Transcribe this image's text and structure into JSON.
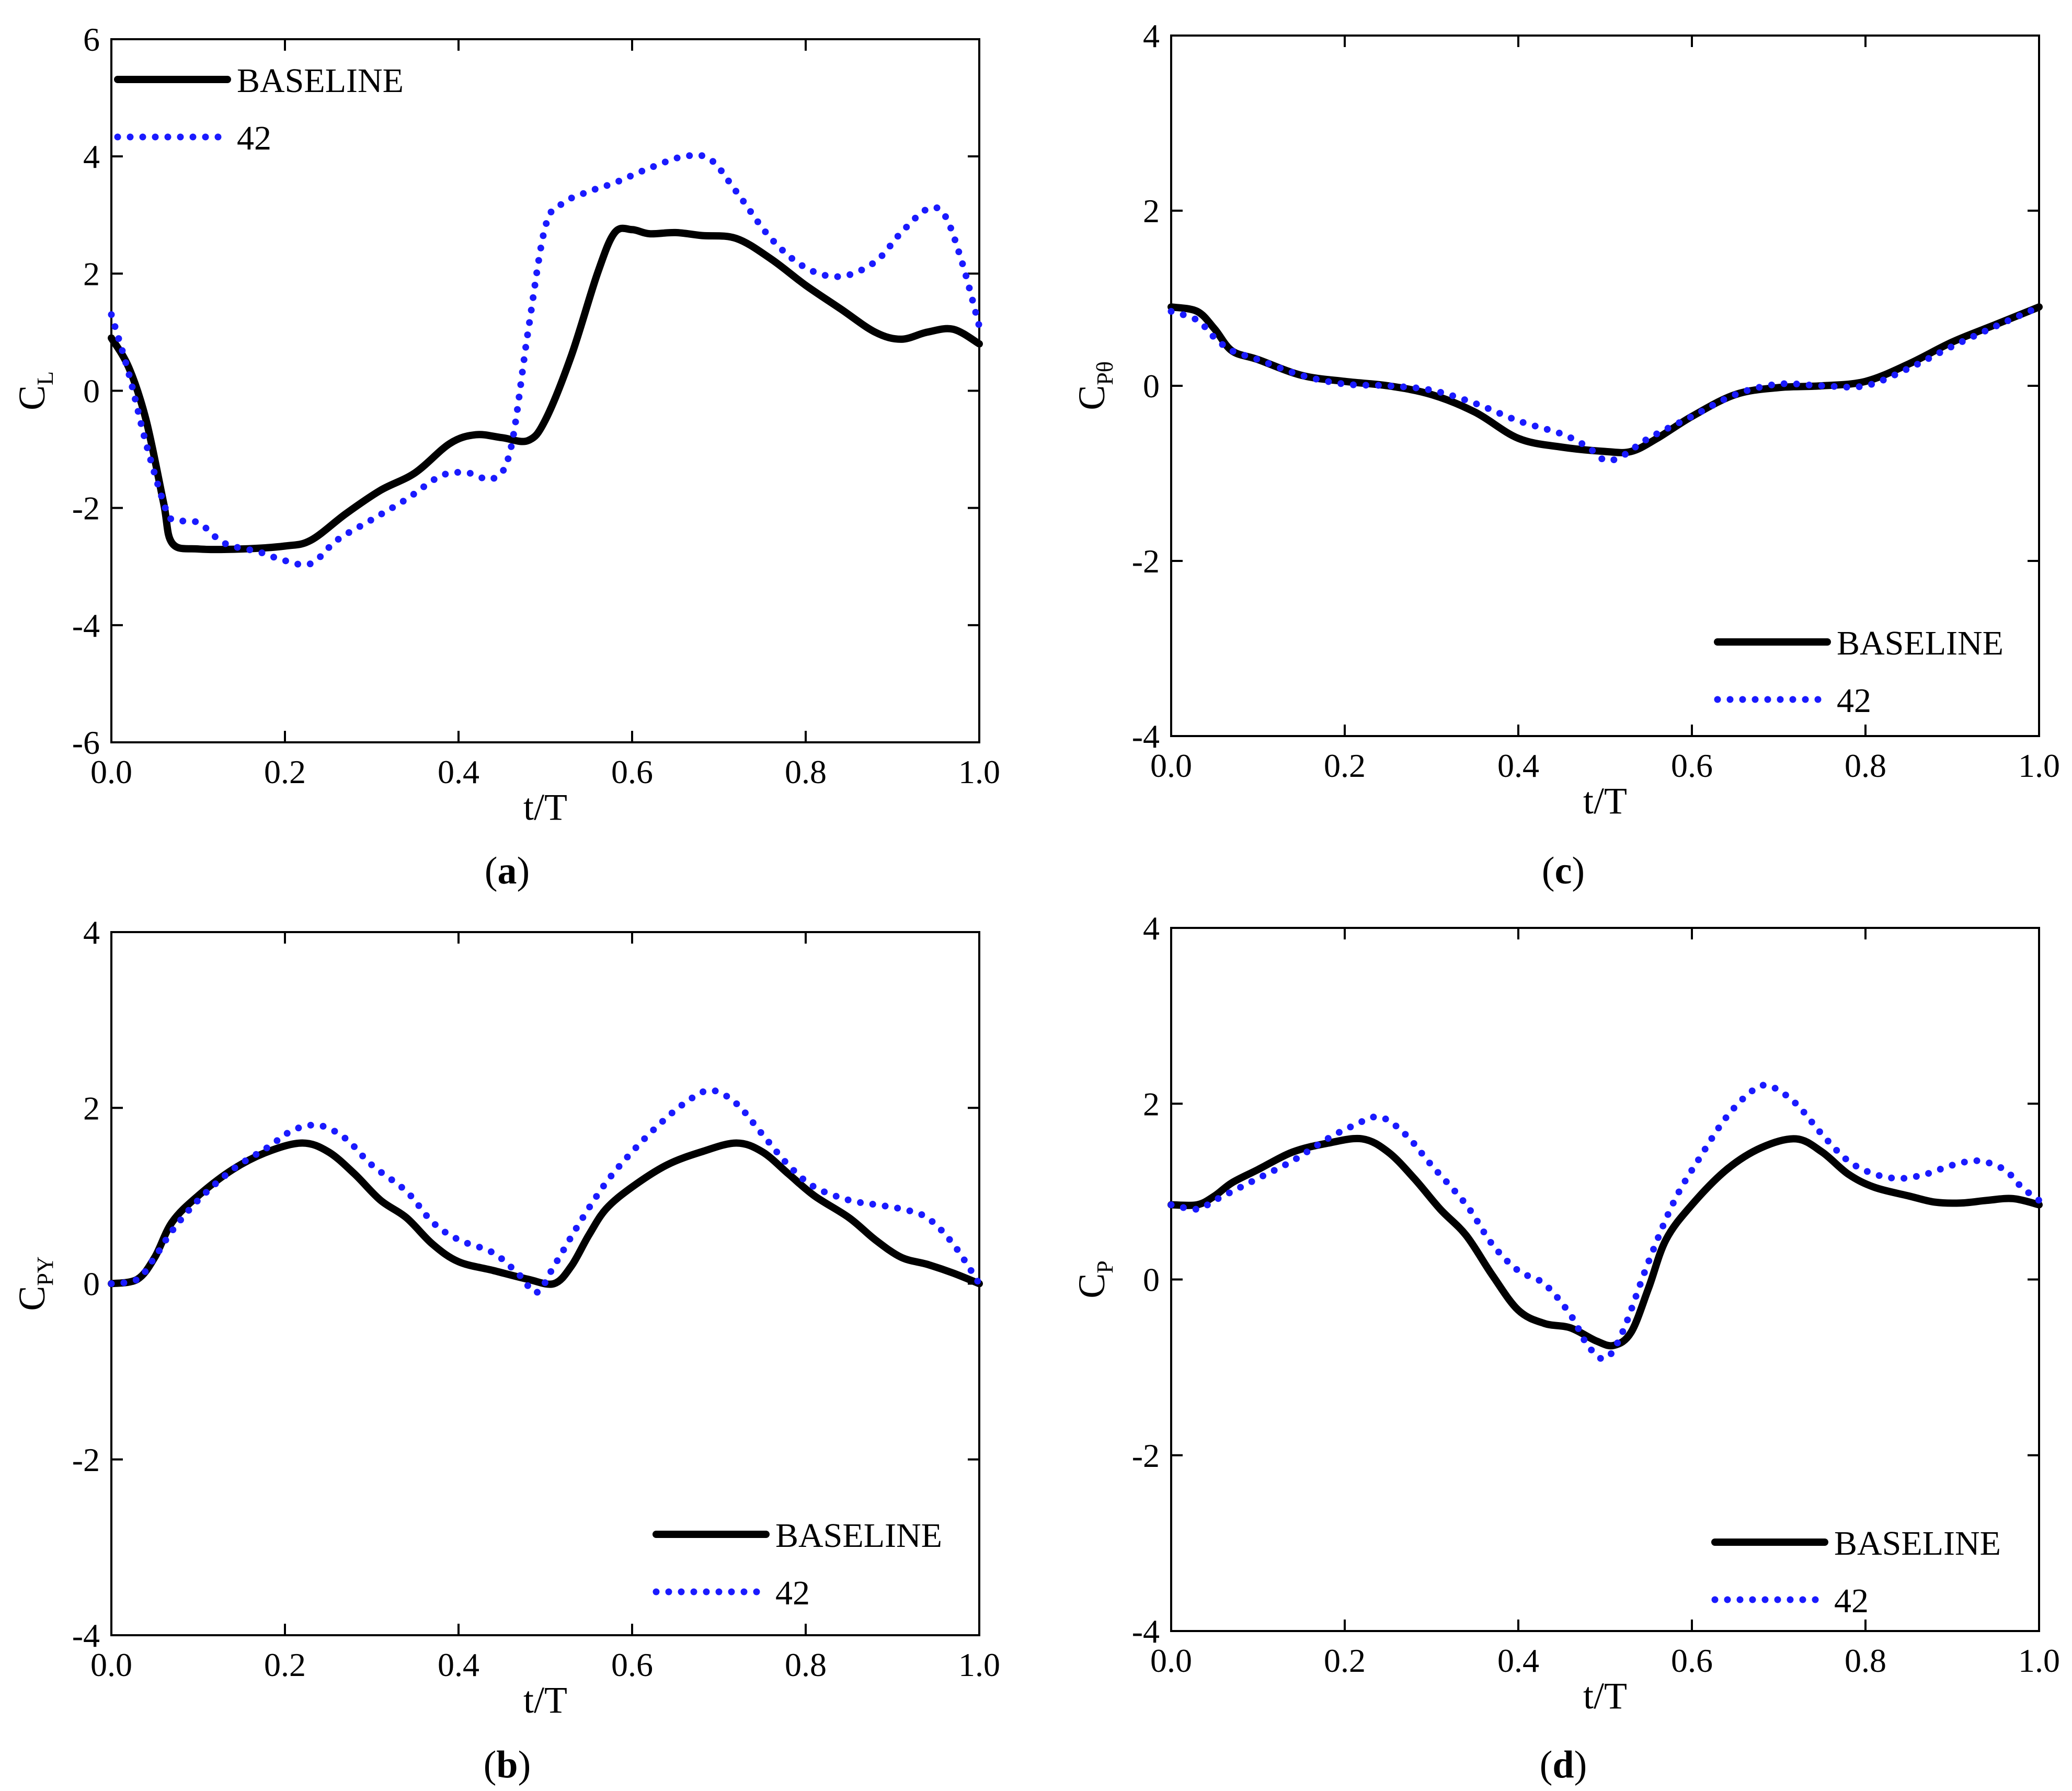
{
  "legend": {
    "baseline": "BASELINE",
    "case": "42"
  },
  "colors": {
    "baseline": "#000000",
    "case": "#1a1aff"
  },
  "chart_data": [
    {
      "id": "a",
      "type": "line",
      "caption": "a",
      "xlabel": "t/T",
      "ylabel": {
        "main": "C",
        "sub": "L"
      },
      "xlim": [
        0,
        1
      ],
      "ylim": [
        -6,
        6
      ],
      "xticks": [
        0,
        0.2,
        0.4,
        0.6,
        0.8,
        1
      ],
      "xtick_labels": [
        "0.0",
        "0.2",
        "0.4",
        "0.6",
        "0.8",
        "1.0"
      ],
      "yticks": [
        -6,
        -4,
        -2,
        0,
        2,
        4,
        6
      ],
      "ytick_labels": [
        "-6",
        "-4",
        "-2",
        "0",
        "2",
        "4",
        "6"
      ],
      "legend_position": "top-left",
      "series": [
        {
          "name": "BASELINE",
          "style": "solid",
          "x": [
            0,
            0.02,
            0.04,
            0.06,
            0.07,
            0.1,
            0.15,
            0.2,
            0.23,
            0.27,
            0.31,
            0.35,
            0.39,
            0.42,
            0.45,
            0.48,
            0.5,
            0.53,
            0.56,
            0.58,
            0.6,
            0.62,
            0.65,
            0.68,
            0.72,
            0.76,
            0.8,
            0.84,
            0.88,
            0.91,
            0.94,
            0.97,
            1.0
          ],
          "y": [
            0.9,
            0.4,
            -0.5,
            -1.9,
            -2.6,
            -2.7,
            -2.7,
            -2.65,
            -2.55,
            -2.1,
            -1.7,
            -1.4,
            -0.9,
            -0.75,
            -0.8,
            -0.85,
            -0.5,
            0.6,
            2.0,
            2.7,
            2.75,
            2.68,
            2.7,
            2.65,
            2.6,
            2.25,
            1.8,
            1.4,
            1.0,
            0.88,
            1.0,
            1.05,
            0.8
          ]
        },
        {
          "name": "42",
          "style": "dotted",
          "x": [
            0,
            0.02,
            0.04,
            0.06,
            0.07,
            0.1,
            0.13,
            0.17,
            0.2,
            0.23,
            0.26,
            0.3,
            0.34,
            0.38,
            0.41,
            0.44,
            0.46,
            0.48,
            0.5,
            0.52,
            0.55,
            0.58,
            0.62,
            0.66,
            0.69,
            0.72,
            0.76,
            0.8,
            0.84,
            0.88,
            0.91,
            0.94,
            0.96,
            0.98,
            1.0
          ],
          "y": [
            1.3,
            0.3,
            -0.9,
            -1.9,
            -2.2,
            -2.25,
            -2.6,
            -2.75,
            -2.9,
            -2.95,
            -2.55,
            -2.2,
            -1.85,
            -1.45,
            -1.4,
            -1.5,
            -1.0,
            1.0,
            2.8,
            3.2,
            3.4,
            3.55,
            3.8,
            4.0,
            3.95,
            3.4,
            2.6,
            2.1,
            1.95,
            2.2,
            2.7,
            3.1,
            3.0,
            2.2,
            1.1
          ]
        }
      ]
    },
    {
      "id": "b",
      "type": "line",
      "caption": "b",
      "xlabel": "t/T",
      "ylabel": {
        "main": "C",
        "sub": "PY"
      },
      "xlim": [
        0,
        1
      ],
      "ylim": [
        -4,
        4
      ],
      "xticks": [
        0,
        0.2,
        0.4,
        0.6,
        0.8,
        1
      ],
      "xtick_labels": [
        "0.0",
        "0.2",
        "0.4",
        "0.6",
        "0.8",
        "1.0"
      ],
      "yticks": [
        -4,
        -2,
        0,
        2,
        4
      ],
      "ytick_labels": [
        "-4",
        "-2",
        "0",
        "2",
        "4"
      ],
      "legend_position": "bottom-right",
      "series": [
        {
          "name": "BASELINE",
          "style": "solid",
          "x": [
            0,
            0.03,
            0.05,
            0.07,
            0.1,
            0.14,
            0.18,
            0.22,
            0.25,
            0.28,
            0.31,
            0.34,
            0.37,
            0.4,
            0.44,
            0.48,
            0.51,
            0.53,
            0.55,
            0.57,
            0.6,
            0.64,
            0.68,
            0.72,
            0.75,
            0.78,
            0.81,
            0.85,
            0.88,
            0.91,
            0.94,
            0.97,
            1.0
          ],
          "y": [
            0,
            0.05,
            0.3,
            0.7,
            1.0,
            1.3,
            1.5,
            1.6,
            1.5,
            1.25,
            0.95,
            0.75,
            0.45,
            0.25,
            0.15,
            0.05,
            0.0,
            0.2,
            0.55,
            0.85,
            1.1,
            1.35,
            1.5,
            1.6,
            1.5,
            1.25,
            1.0,
            0.75,
            0.5,
            0.3,
            0.22,
            0.12,
            0.0
          ]
        },
        {
          "name": "42",
          "style": "dotted",
          "x": [
            0,
            0.03,
            0.05,
            0.07,
            0.1,
            0.14,
            0.18,
            0.21,
            0.24,
            0.27,
            0.3,
            0.34,
            0.37,
            0.4,
            0.44,
            0.47,
            0.49,
            0.51,
            0.54,
            0.57,
            0.6,
            0.63,
            0.66,
            0.69,
            0.72,
            0.75,
            0.78,
            0.81,
            0.85,
            0.88,
            0.91,
            0.94,
            0.97,
            1.0
          ],
          "y": [
            0,
            0.05,
            0.3,
            0.6,
            0.95,
            1.3,
            1.55,
            1.75,
            1.8,
            1.65,
            1.35,
            1.05,
            0.7,
            0.5,
            0.35,
            0.1,
            -0.1,
            0.2,
            0.7,
            1.15,
            1.5,
            1.8,
            2.05,
            2.2,
            2.05,
            1.7,
            1.35,
            1.1,
            0.95,
            0.9,
            0.85,
            0.75,
            0.45,
            0.0
          ]
        }
      ]
    },
    {
      "id": "c",
      "type": "line",
      "caption": "c",
      "xlabel": "t/T",
      "ylabel": {
        "main": "C",
        "sub": "Pθ"
      },
      "xlim": [
        0,
        1
      ],
      "ylim": [
        -4,
        4
      ],
      "xticks": [
        0,
        0.2,
        0.4,
        0.6,
        0.8,
        1
      ],
      "xtick_labels": [
        "0.0",
        "0.2",
        "0.4",
        "0.6",
        "0.8",
        "1.0"
      ],
      "yticks": [
        -4,
        -2,
        0,
        2,
        4
      ],
      "ytick_labels": [
        "-4",
        "-2",
        "0",
        "2",
        "4"
      ],
      "legend_position": "bottom-right",
      "series": [
        {
          "name": "BASELINE",
          "style": "solid",
          "x": [
            0,
            0.03,
            0.05,
            0.07,
            0.1,
            0.15,
            0.2,
            0.25,
            0.3,
            0.35,
            0.4,
            0.45,
            0.5,
            0.53,
            0.56,
            0.6,
            0.65,
            0.7,
            0.75,
            0.8,
            0.85,
            0.9,
            0.95,
            1.0
          ],
          "y": [
            0.9,
            0.85,
            0.65,
            0.4,
            0.3,
            0.12,
            0.05,
            0.0,
            -0.1,
            -0.3,
            -0.6,
            -0.7,
            -0.75,
            -0.75,
            -0.6,
            -0.35,
            -0.1,
            -0.02,
            0.0,
            0.05,
            0.25,
            0.5,
            0.7,
            0.9
          ]
        },
        {
          "name": "42",
          "style": "dotted",
          "x": [
            0,
            0.03,
            0.05,
            0.07,
            0.1,
            0.15,
            0.2,
            0.25,
            0.3,
            0.35,
            0.4,
            0.45,
            0.48,
            0.5,
            0.52,
            0.55,
            0.6,
            0.65,
            0.7,
            0.75,
            0.8,
            0.85,
            0.9,
            0.95,
            1.0
          ],
          "y": [
            0.85,
            0.75,
            0.55,
            0.4,
            0.3,
            0.12,
            0.02,
            0.0,
            -0.05,
            -0.2,
            -0.4,
            -0.55,
            -0.7,
            -0.85,
            -0.8,
            -0.6,
            -0.35,
            -0.1,
            0.02,
            0.0,
            0.0,
            0.2,
            0.45,
            0.68,
            0.9
          ]
        }
      ]
    },
    {
      "id": "d",
      "type": "line",
      "caption": "d",
      "xlabel": "t/T",
      "ylabel": {
        "main": "C",
        "sub": "P"
      },
      "xlim": [
        0,
        1
      ],
      "ylim": [
        -4,
        4
      ],
      "xticks": [
        0,
        0.2,
        0.4,
        0.6,
        0.8,
        1
      ],
      "xtick_labels": [
        "0.0",
        "0.2",
        "0.4",
        "0.6",
        "0.8",
        "1.0"
      ],
      "yticks": [
        -4,
        -2,
        0,
        2,
        4
      ],
      "ytick_labels": [
        "-4",
        "-2",
        "0",
        "2",
        "4"
      ],
      "legend_position": "bottom-right",
      "series": [
        {
          "name": "BASELINE",
          "style": "solid",
          "x": [
            0,
            0.03,
            0.05,
            0.07,
            0.1,
            0.14,
            0.18,
            0.22,
            0.25,
            0.28,
            0.31,
            0.34,
            0.37,
            0.4,
            0.43,
            0.46,
            0.49,
            0.51,
            0.53,
            0.55,
            0.57,
            0.6,
            0.64,
            0.68,
            0.72,
            0.75,
            0.78,
            0.81,
            0.85,
            0.88,
            0.91,
            0.94,
            0.97,
            1.0
          ],
          "y": [
            0.85,
            0.85,
            0.95,
            1.1,
            1.25,
            1.45,
            1.55,
            1.6,
            1.45,
            1.15,
            0.8,
            0.5,
            0.05,
            -0.35,
            -0.5,
            -0.55,
            -0.7,
            -0.75,
            -0.6,
            -0.1,
            0.45,
            0.85,
            1.25,
            1.5,
            1.6,
            1.45,
            1.2,
            1.05,
            0.95,
            0.88,
            0.87,
            0.9,
            0.92,
            0.85
          ]
        },
        {
          "name": "42",
          "style": "dotted",
          "x": [
            0,
            0.03,
            0.05,
            0.07,
            0.1,
            0.14,
            0.18,
            0.21,
            0.24,
            0.27,
            0.3,
            0.34,
            0.37,
            0.4,
            0.43,
            0.46,
            0.48,
            0.5,
            0.52,
            0.55,
            0.58,
            0.61,
            0.64,
            0.67,
            0.69,
            0.72,
            0.75,
            0.78,
            0.81,
            0.84,
            0.87,
            0.9,
            0.93,
            0.96,
            0.98,
            1.0
          ],
          "y": [
            0.85,
            0.8,
            0.9,
            1.0,
            1.15,
            1.35,
            1.6,
            1.75,
            1.85,
            1.65,
            1.3,
            0.85,
            0.4,
            0.1,
            -0.05,
            -0.4,
            -0.75,
            -0.9,
            -0.6,
            0.2,
            0.9,
            1.4,
            1.85,
            2.15,
            2.2,
            2.0,
            1.65,
            1.35,
            1.2,
            1.15,
            1.2,
            1.3,
            1.35,
            1.25,
            1.05,
            0.9
          ]
        }
      ]
    }
  ]
}
